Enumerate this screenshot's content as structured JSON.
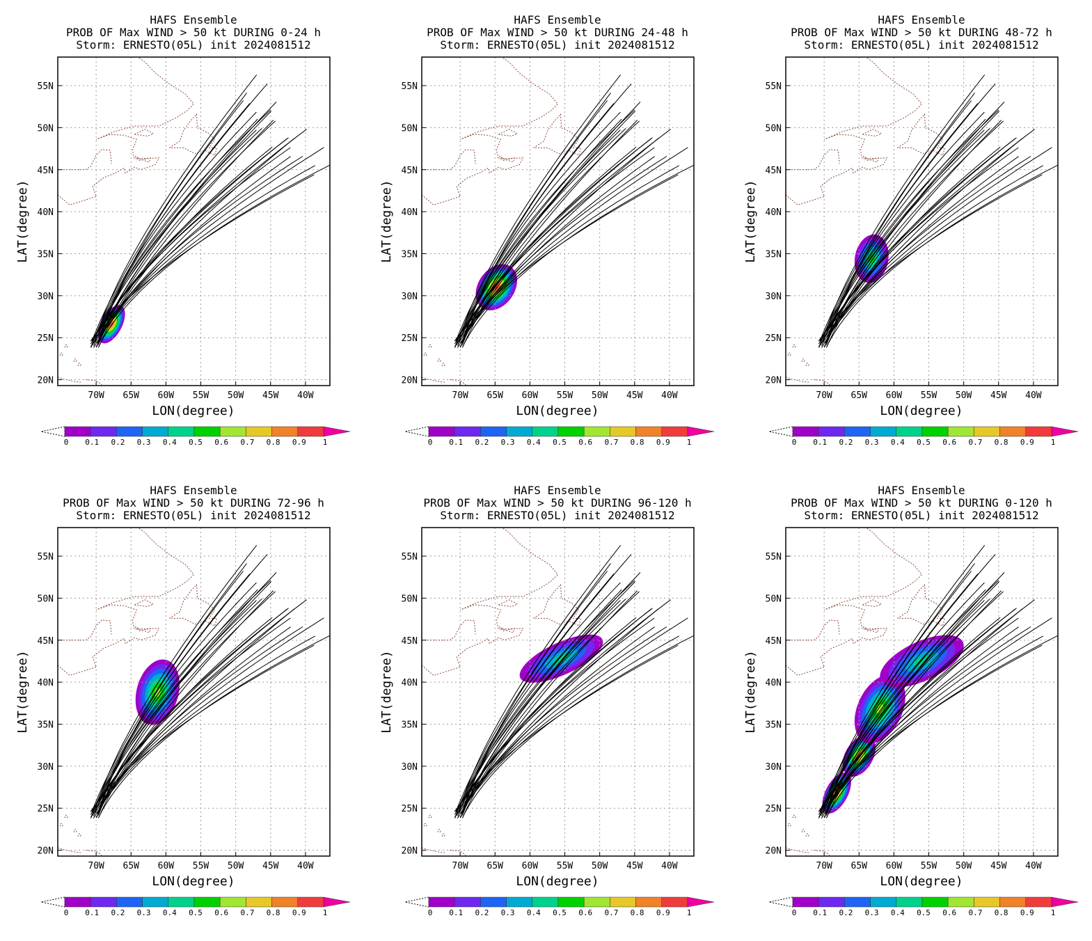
{
  "map": {
    "lon_min": -75.5,
    "lon_max": -36.5,
    "lat_min": 19.3,
    "lat_max": 58.4,
    "lon_ticks": [
      -70,
      -65,
      -60,
      -55,
      -50,
      -45,
      -40
    ],
    "lon_labels": [
      "70W",
      "65W",
      "60W",
      "55W",
      "50W",
      "45W",
      "40W"
    ],
    "lat_ticks": [
      20,
      25,
      30,
      35,
      40,
      45,
      50,
      55
    ],
    "lat_labels": [
      "20N",
      "25N",
      "30N",
      "35N",
      "40N",
      "45N",
      "50N",
      "55N"
    ],
    "xlabel": "LON(degree)",
    "ylabel": "LAT(degree)",
    "grid": true,
    "coastline_color": "#8b4a3a",
    "track_color": "#000000"
  },
  "colorbar": {
    "labels": [
      "0",
      "0.1",
      "0.2",
      "0.3",
      "0.4",
      "0.5",
      "0.6",
      "0.7",
      "0.8",
      "0.9",
      "1"
    ],
    "colors": [
      "#a000c8",
      "#6e28ef",
      "#1e64f5",
      "#00aad2",
      "#00d28c",
      "#00d200",
      "#a0e632",
      "#e6c828",
      "#f08228",
      "#f03c3c",
      "#f000a0"
    ]
  },
  "panels": [
    {
      "title1": "HAFS Ensemble",
      "title2": "PROB OF Max WIND > 50 kt DURING  0-24 h",
      "title3": "Storm: ERNESTO(05L) init 2024081512",
      "blobs": [
        {
          "lon": -67.8,
          "lat": 26.6,
          "sx": 1.5,
          "sy": 3.0,
          "rot": 28,
          "peak": 0.95
        }
      ]
    },
    {
      "title1": "HAFS Ensemble",
      "title2": "PROB OF Max WIND > 50 kt DURING 24-48 h",
      "title3": "Storm: ERNESTO(05L) init 2024081512",
      "blobs": [
        {
          "lon": -64.8,
          "lat": 31.0,
          "sx": 2.6,
          "sy": 3.6,
          "rot": 35,
          "peak": 0.95
        }
      ]
    },
    {
      "title1": "HAFS Ensemble",
      "title2": "PROB OF Max WIND > 50 kt DURING 48-72 h",
      "title3": "Storm: ERNESTO(05L) init 2024081512",
      "blobs": [
        {
          "lon": -63.2,
          "lat": 34.4,
          "sx": 2.4,
          "sy": 3.5,
          "rot": 10,
          "peak": 0.6
        }
      ]
    },
    {
      "title1": "HAFS Ensemble",
      "title2": "PROB OF Max WIND > 50 kt DURING 72-96 h",
      "title3": "Storm: ERNESTO(05L) init 2024081512",
      "blobs": [
        {
          "lon": -61.2,
          "lat": 38.8,
          "sx": 3.0,
          "sy": 4.8,
          "rot": 15,
          "peak": 0.65
        }
      ]
    },
    {
      "title1": "HAFS Ensemble",
      "title2": "PROB OF Max WIND > 50 kt DURING 96-120 h",
      "title3": "Storm: ERNESTO(05L) init 2024081512",
      "blobs": [
        {
          "lon": -55.5,
          "lat": 42.8,
          "sx": 6.5,
          "sy": 2.3,
          "rot": -25,
          "peak": 0.45
        }
      ]
    },
    {
      "title1": "HAFS Ensemble",
      "title2": "PROB OF Max WIND > 50 kt DURING 0-120 h",
      "title3": "Storm: ERNESTO(05L) init 2024081512",
      "blobs": [
        {
          "lon": -68.2,
          "lat": 26.8,
          "sx": 1.6,
          "sy": 3.2,
          "rot": 28,
          "peak": 0.97
        },
        {
          "lon": -65.0,
          "lat": 31.2,
          "sx": 2.0,
          "sy": 3.2,
          "rot": 30,
          "peak": 0.9
        },
        {
          "lon": -62.0,
          "lat": 36.8,
          "sx": 3.2,
          "sy": 5.2,
          "rot": 25,
          "peak": 0.7
        },
        {
          "lon": -56.0,
          "lat": 42.5,
          "sx": 6.5,
          "sy": 2.8,
          "rot": -25,
          "peak": 0.5
        }
      ]
    }
  ]
}
